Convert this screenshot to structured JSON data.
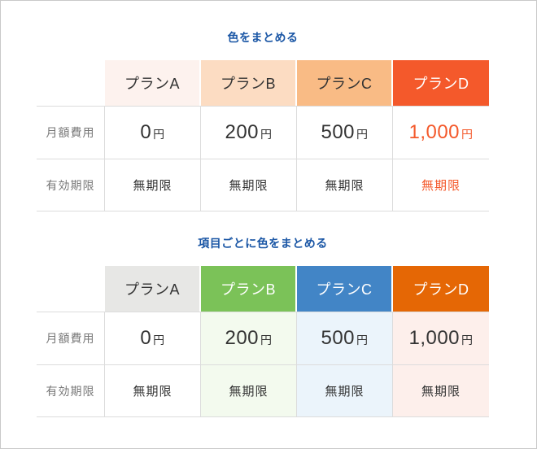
{
  "colors": {
    "frame_border": "#c9c9c9",
    "grid_line": "#dcdcdc",
    "row_label_text": "#777777",
    "value_text": "#333333",
    "title_blue": "#1a56a5"
  },
  "tables": [
    {
      "title": "色をまとめる",
      "title_color": "#1a56a5",
      "unit": "円",
      "row_labels": [
        "月額費用",
        "有効期限"
      ],
      "columns": [
        {
          "label": "プランA",
          "header_bg": "#fdf2ee",
          "header_fg": "#333333",
          "body_bg": "#ffffff",
          "value_fg": "#333333",
          "price": "0",
          "expiry": "無期限"
        },
        {
          "label": "プランB",
          "header_bg": "#fcdcc2",
          "header_fg": "#333333",
          "body_bg": "#ffffff",
          "value_fg": "#333333",
          "price": "200",
          "expiry": "無期限"
        },
        {
          "label": "プランC",
          "header_bg": "#f9bb85",
          "header_fg": "#333333",
          "body_bg": "#ffffff",
          "value_fg": "#333333",
          "price": "500",
          "expiry": "無期限"
        },
        {
          "label": "プランD",
          "header_bg": "#f4592b",
          "header_fg": "#ffffff",
          "body_bg": "#ffffff",
          "value_fg": "#f4592b",
          "price": "1,000",
          "expiry": "無期限"
        }
      ]
    },
    {
      "title": "項目ごとに色をまとめる",
      "title_color": "#1a56a5",
      "unit": "円",
      "row_labels": [
        "月額費用",
        "有効期限"
      ],
      "columns": [
        {
          "label": "プランA",
          "header_bg": "#e7e7e5",
          "header_fg": "#333333",
          "body_bg": "#ffffff",
          "value_fg": "#333333",
          "price": "0",
          "expiry": "無期限"
        },
        {
          "label": "プランB",
          "header_bg": "#7bc258",
          "header_fg": "#ffffff",
          "body_bg": "#f3faee",
          "value_fg": "#333333",
          "price": "200",
          "expiry": "無期限"
        },
        {
          "label": "プランC",
          "header_bg": "#4285c6",
          "header_fg": "#ffffff",
          "body_bg": "#ebf4fb",
          "value_fg": "#333333",
          "price": "500",
          "expiry": "無期限"
        },
        {
          "label": "プランD",
          "header_bg": "#e56705",
          "header_fg": "#ffffff",
          "body_bg": "#fdefeb",
          "value_fg": "#333333",
          "price": "1,000",
          "expiry": "無期限"
        }
      ]
    }
  ],
  "chart_data": [
    {
      "type": "table",
      "title": "色をまとめる",
      "columns": [
        "",
        "プランA",
        "プランB",
        "プランC",
        "プランD"
      ],
      "rows": [
        [
          "月額費用",
          "0円",
          "200円",
          "500円",
          "1,000円"
        ],
        [
          "有効期限",
          "無期限",
          "無期限",
          "無期限",
          "無期限"
        ]
      ]
    },
    {
      "type": "table",
      "title": "項目ごとに色をまとめる",
      "columns": [
        "",
        "プランA",
        "プランB",
        "プランC",
        "プランD"
      ],
      "rows": [
        [
          "月額費用",
          "0円",
          "200円",
          "500円",
          "1,000円"
        ],
        [
          "有効期限",
          "無期限",
          "無期限",
          "無期限",
          "無期限"
        ]
      ]
    }
  ]
}
